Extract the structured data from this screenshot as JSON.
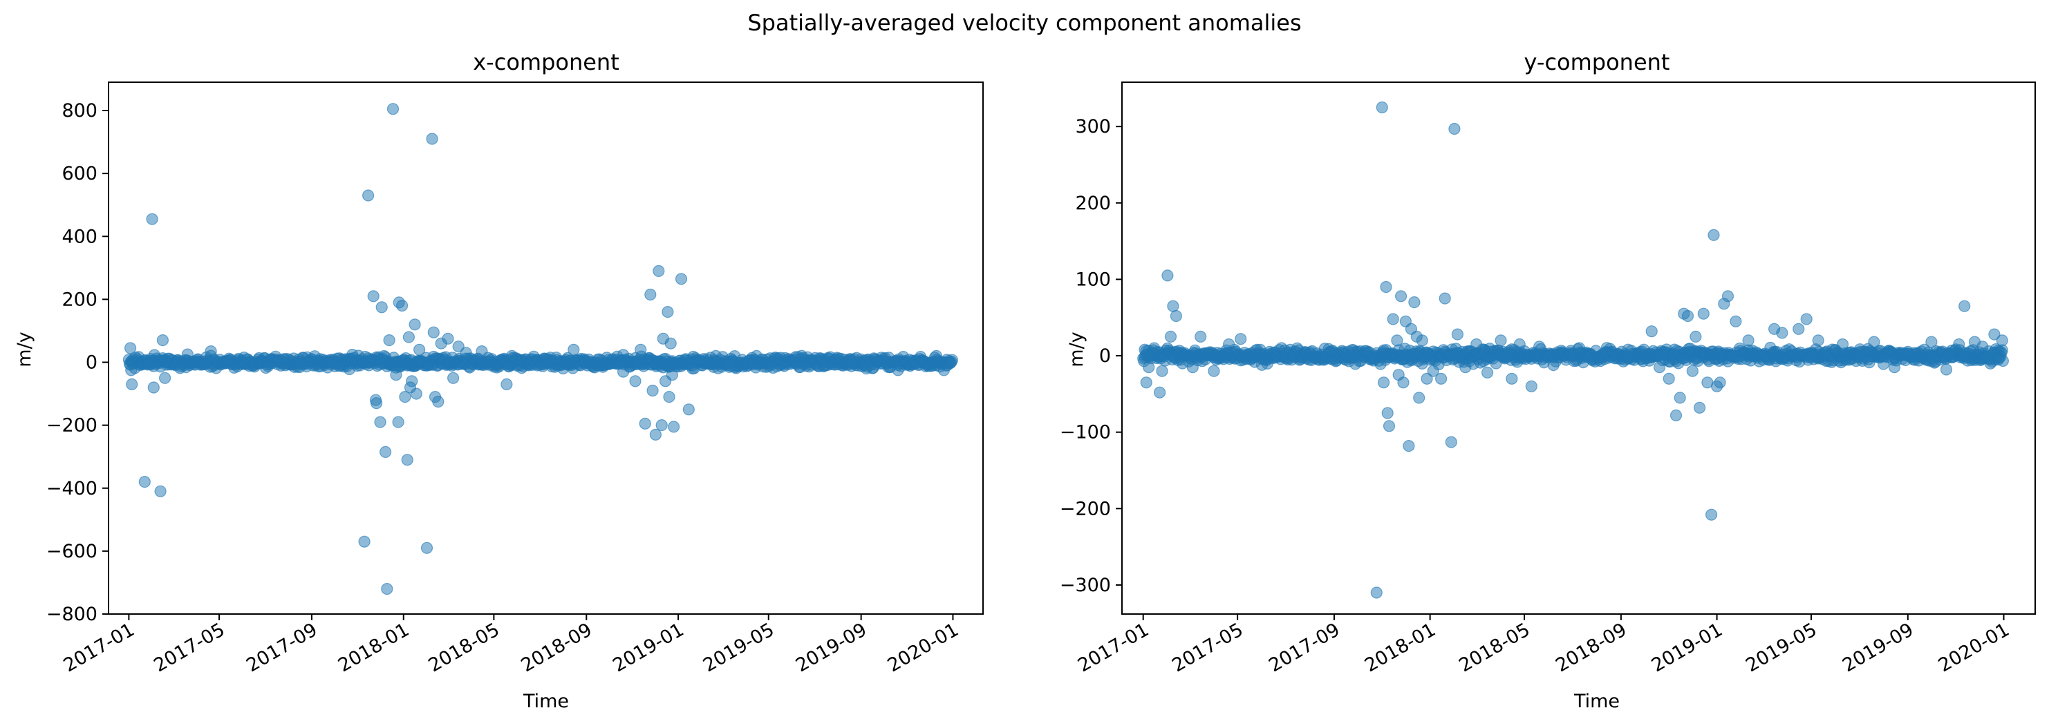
{
  "figure": {
    "suptitle": "Spatially-averaged velocity component anomalies",
    "point_color": "#1f77b4"
  },
  "chart_data": [
    {
      "type": "scatter",
      "title": "x-component",
      "xlabel": "Time",
      "ylabel": "m/y",
      "xlim": [
        "2016-12-05",
        "2020-02-10"
      ],
      "ylim": [
        -800,
        890
      ],
      "x_ticks": [
        "2017-01",
        "2017-05",
        "2017-09",
        "2018-01",
        "2018-05",
        "2018-09",
        "2019-01",
        "2019-05",
        "2019-09",
        "2020-01"
      ],
      "y_ticks": [
        -800,
        -600,
        -400,
        -200,
        0,
        200,
        400,
        600,
        800
      ],
      "grid": false,
      "band": {
        "start": "2017-01-01",
        "end": "2019-12-31",
        "amplitude": 12
      },
      "outliers": [
        {
          "x": "2017-01-03",
          "y": 45
        },
        {
          "x": "2017-01-05",
          "y": -70
        },
        {
          "x": "2017-01-04",
          "y": -25
        },
        {
          "x": "2017-01-22",
          "y": -380
        },
        {
          "x": "2017-02-01",
          "y": 455
        },
        {
          "x": "2017-02-03",
          "y": -80
        },
        {
          "x": "2017-02-12",
          "y": -410
        },
        {
          "x": "2017-02-15",
          "y": 70
        },
        {
          "x": "2017-02-18",
          "y": -50
        },
        {
          "x": "2017-03-20",
          "y": 25
        },
        {
          "x": "2017-04-20",
          "y": 35
        },
        {
          "x": "2017-11-10",
          "y": -570
        },
        {
          "x": "2017-11-15",
          "y": 530
        },
        {
          "x": "2017-11-22",
          "y": 210
        },
        {
          "x": "2017-11-25",
          "y": -120
        },
        {
          "x": "2017-11-26",
          "y": -130
        },
        {
          "x": "2017-12-01",
          "y": -190
        },
        {
          "x": "2017-12-03",
          "y": 175
        },
        {
          "x": "2017-12-08",
          "y": -285
        },
        {
          "x": "2017-12-10",
          "y": -720
        },
        {
          "x": "2017-12-13",
          "y": 70
        },
        {
          "x": "2017-12-18",
          "y": 805
        },
        {
          "x": "2017-12-22",
          "y": -40
        },
        {
          "x": "2017-12-25",
          "y": -190
        },
        {
          "x": "2017-12-26",
          "y": 190
        },
        {
          "x": "2017-12-30",
          "y": 180
        },
        {
          "x": "2018-01-03",
          "y": -110
        },
        {
          "x": "2018-01-06",
          "y": -310
        },
        {
          "x": "2018-01-08",
          "y": 80
        },
        {
          "x": "2018-01-10",
          "y": -80
        },
        {
          "x": "2018-01-12",
          "y": -60
        },
        {
          "x": "2018-01-16",
          "y": 120
        },
        {
          "x": "2018-01-18",
          "y": -100
        },
        {
          "x": "2018-01-22",
          "y": 40
        },
        {
          "x": "2018-02-01",
          "y": -590
        },
        {
          "x": "2018-02-08",
          "y": 710
        },
        {
          "x": "2018-02-10",
          "y": 95
        },
        {
          "x": "2018-02-12",
          "y": -110
        },
        {
          "x": "2018-02-16",
          "y": -125
        },
        {
          "x": "2018-02-20",
          "y": 60
        },
        {
          "x": "2018-03-01",
          "y": 75
        },
        {
          "x": "2018-03-08",
          "y": -50
        },
        {
          "x": "2018-03-15",
          "y": 50
        },
        {
          "x": "2018-03-25",
          "y": 30
        },
        {
          "x": "2018-04-15",
          "y": 35
        },
        {
          "x": "2018-05-18",
          "y": -70
        },
        {
          "x": "2018-05-25",
          "y": 20
        },
        {
          "x": "2018-08-15",
          "y": 40
        },
        {
          "x": "2018-10-20",
          "y": -30
        },
        {
          "x": "2018-11-05",
          "y": -60
        },
        {
          "x": "2018-11-12",
          "y": 40
        },
        {
          "x": "2018-11-18",
          "y": -195
        },
        {
          "x": "2018-11-25",
          "y": 215
        },
        {
          "x": "2018-11-28",
          "y": -90
        },
        {
          "x": "2018-12-02",
          "y": -230
        },
        {
          "x": "2018-12-06",
          "y": 290
        },
        {
          "x": "2018-12-10",
          "y": -200
        },
        {
          "x": "2018-12-12",
          "y": 75
        },
        {
          "x": "2018-12-15",
          "y": -60
        },
        {
          "x": "2018-12-18",
          "y": 160
        },
        {
          "x": "2018-12-20",
          "y": -110
        },
        {
          "x": "2018-12-22",
          "y": 60
        },
        {
          "x": "2018-12-24",
          "y": -40
        },
        {
          "x": "2018-12-26",
          "y": -205
        },
        {
          "x": "2019-01-05",
          "y": 265
        },
        {
          "x": "2019-01-15",
          "y": -150
        },
        {
          "x": "2019-01-20",
          "y": -20
        },
        {
          "x": "2019-02-20",
          "y": 20
        },
        {
          "x": "2019-03-10",
          "y": -15
        },
        {
          "x": "2019-10-20",
          "y": -25
        },
        {
          "x": "2019-12-10",
          "y": 20
        },
        {
          "x": "2019-12-20",
          "y": -25
        }
      ]
    },
    {
      "type": "scatter",
      "title": "y-component",
      "xlabel": "Time",
      "ylabel": "m/y",
      "xlim": [
        "2016-12-05",
        "2020-02-10"
      ],
      "ylim": [
        -338,
        358
      ],
      "x_ticks": [
        "2017-01",
        "2017-05",
        "2017-09",
        "2018-01",
        "2018-05",
        "2018-09",
        "2019-01",
        "2019-05",
        "2019-09",
        "2020-01"
      ],
      "y_ticks": [
        -300,
        -200,
        -100,
        0,
        100,
        200,
        300
      ],
      "grid": false,
      "band": {
        "start": "2017-01-01",
        "end": "2019-12-31",
        "amplitude": 6
      },
      "outliers": [
        {
          "x": "2017-01-03",
          "y": 8
        },
        {
          "x": "2017-01-05",
          "y": -35
        },
        {
          "x": "2017-01-08",
          "y": -15
        },
        {
          "x": "2017-01-22",
          "y": -48
        },
        {
          "x": "2017-01-25",
          "y": -20
        },
        {
          "x": "2017-02-01",
          "y": 105
        },
        {
          "x": "2017-02-05",
          "y": 25
        },
        {
          "x": "2017-02-08",
          "y": 65
        },
        {
          "x": "2017-02-12",
          "y": 52
        },
        {
          "x": "2017-02-20",
          "y": -10
        },
        {
          "x": "2017-03-05",
          "y": -15
        },
        {
          "x": "2017-03-15",
          "y": 25
        },
        {
          "x": "2017-04-01",
          "y": -20
        },
        {
          "x": "2017-04-20",
          "y": 15
        },
        {
          "x": "2017-05-05",
          "y": 22
        },
        {
          "x": "2017-06-01",
          "y": -12
        },
        {
          "x": "2017-10-25",
          "y": -310
        },
        {
          "x": "2017-11-01",
          "y": 325
        },
        {
          "x": "2017-11-03",
          "y": -35
        },
        {
          "x": "2017-11-06",
          "y": 90
        },
        {
          "x": "2017-11-08",
          "y": -75
        },
        {
          "x": "2017-11-10",
          "y": -92
        },
        {
          "x": "2017-11-15",
          "y": 48
        },
        {
          "x": "2017-11-20",
          "y": 20
        },
        {
          "x": "2017-11-22",
          "y": -25
        },
        {
          "x": "2017-11-25",
          "y": 78
        },
        {
          "x": "2017-11-28",
          "y": -35
        },
        {
          "x": "2017-12-01",
          "y": 45
        },
        {
          "x": "2017-12-05",
          "y": -118
        },
        {
          "x": "2017-12-08",
          "y": 35
        },
        {
          "x": "2017-12-12",
          "y": 70
        },
        {
          "x": "2017-12-15",
          "y": 25
        },
        {
          "x": "2017-12-18",
          "y": -55
        },
        {
          "x": "2017-12-22",
          "y": 20
        },
        {
          "x": "2017-12-28",
          "y": -30
        },
        {
          "x": "2018-01-05",
          "y": -20
        },
        {
          "x": "2018-01-15",
          "y": -30
        },
        {
          "x": "2018-01-20",
          "y": 75
        },
        {
          "x": "2018-01-28",
          "y": -113
        },
        {
          "x": "2018-02-01",
          "y": 297
        },
        {
          "x": "2018-02-05",
          "y": 28
        },
        {
          "x": "2018-02-15",
          "y": -15
        },
        {
          "x": "2018-03-01",
          "y": 15
        },
        {
          "x": "2018-03-15",
          "y": -22
        },
        {
          "x": "2018-04-01",
          "y": 20
        },
        {
          "x": "2018-04-15",
          "y": -30
        },
        {
          "x": "2018-04-25",
          "y": 15
        },
        {
          "x": "2018-05-10",
          "y": -40
        },
        {
          "x": "2018-05-20",
          "y": 12
        },
        {
          "x": "2018-07-10",
          "y": 10
        },
        {
          "x": "2018-09-10",
          "y": 8
        },
        {
          "x": "2018-10-10",
          "y": 32
        },
        {
          "x": "2018-10-20",
          "y": -15
        },
        {
          "x": "2018-11-01",
          "y": -30
        },
        {
          "x": "2018-11-10",
          "y": -78
        },
        {
          "x": "2018-11-15",
          "y": -55
        },
        {
          "x": "2018-11-20",
          "y": 55
        },
        {
          "x": "2018-11-25",
          "y": 52
        },
        {
          "x": "2018-12-01",
          "y": -20
        },
        {
          "x": "2018-12-05",
          "y": 25
        },
        {
          "x": "2018-12-10",
          "y": -68
        },
        {
          "x": "2018-12-15",
          "y": 55
        },
        {
          "x": "2018-12-20",
          "y": -35
        },
        {
          "x": "2018-12-25",
          "y": -208
        },
        {
          "x": "2018-12-28",
          "y": 158
        },
        {
          "x": "2019-01-01",
          "y": -40
        },
        {
          "x": "2019-01-05",
          "y": -35
        },
        {
          "x": "2019-01-10",
          "y": 68
        },
        {
          "x": "2019-01-15",
          "y": 78
        },
        {
          "x": "2019-01-25",
          "y": 45
        },
        {
          "x": "2019-02-10",
          "y": 20
        },
        {
          "x": "2019-03-15",
          "y": 35
        },
        {
          "x": "2019-03-25",
          "y": 30
        },
        {
          "x": "2019-04-15",
          "y": 35
        },
        {
          "x": "2019-04-25",
          "y": 48
        },
        {
          "x": "2019-05-10",
          "y": 20
        },
        {
          "x": "2019-06-10",
          "y": 15
        },
        {
          "x": "2019-07-20",
          "y": 18
        },
        {
          "x": "2019-08-15",
          "y": -15
        },
        {
          "x": "2019-10-01",
          "y": 18
        },
        {
          "x": "2019-10-20",
          "y": -18
        },
        {
          "x": "2019-11-05",
          "y": 15
        },
        {
          "x": "2019-11-12",
          "y": 65
        },
        {
          "x": "2019-11-25",
          "y": 18
        },
        {
          "x": "2019-12-05",
          "y": 12
        },
        {
          "x": "2019-12-20",
          "y": 28
        },
        {
          "x": "2019-12-25",
          "y": -5
        },
        {
          "x": "2019-12-30",
          "y": 20
        }
      ]
    }
  ]
}
